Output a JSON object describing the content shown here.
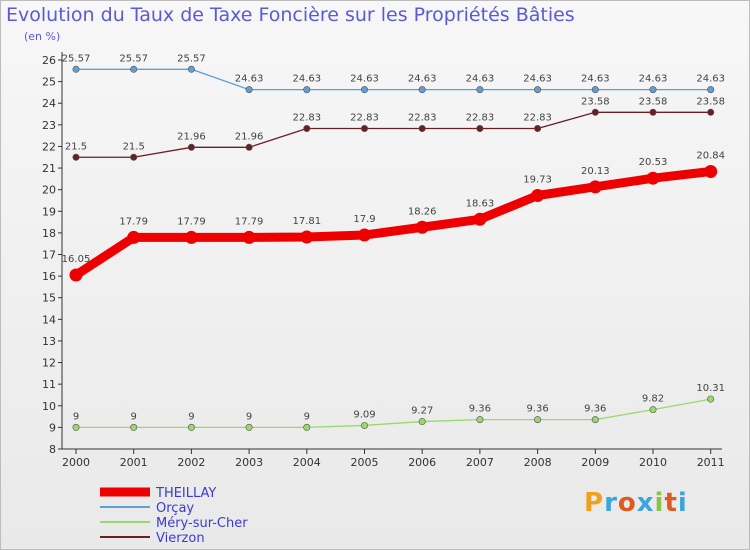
{
  "chart_data": {
    "type": "line",
    "title": "Evolution du Taux de Taxe Foncière sur les Propriétés Bâties",
    "subtitle": "(en %)",
    "xlabel": "",
    "ylabel": "",
    "x": [
      "2000",
      "2001",
      "2002",
      "2003",
      "2004",
      "2005",
      "2006",
      "2007",
      "2008",
      "2009",
      "2010",
      "2011"
    ],
    "ylim": [
      8,
      26
    ],
    "yticks": [
      "8",
      "9",
      "10",
      "11",
      "12",
      "13",
      "14",
      "15",
      "16",
      "17",
      "18",
      "19",
      "20",
      "21",
      "22",
      "23",
      "24",
      "25",
      "26"
    ],
    "grid": false,
    "legend_position": "bottom-left",
    "series": [
      {
        "name": "Vierzon",
        "color": "#6b1f24",
        "values": [
          21.5,
          21.5,
          21.96,
          21.96,
          22.83,
          22.83,
          22.83,
          22.83,
          22.83,
          23.58,
          23.58,
          23.58
        ],
        "labels": [
          "21.5",
          "21.5",
          "21.96",
          "21.96",
          "22.83",
          "22.83",
          "22.83",
          "22.83",
          "22.83",
          "23.58",
          "23.58",
          "23.58"
        ]
      },
      {
        "name": "Méry-sur-Cher",
        "color": "#9ad86b",
        "values": [
          9,
          9,
          9,
          9,
          9,
          9.09,
          9.27,
          9.36,
          9.36,
          9.36,
          9.82,
          10.31
        ],
        "labels": [
          "9",
          "9",
          "9",
          "9",
          "9",
          "9.09",
          "9.27",
          "9.36",
          "9.36",
          "9.36",
          "9.82",
          "10.31"
        ]
      },
      {
        "name": "Orçay",
        "color": "#5f9fd6",
        "values": [
          25.57,
          25.57,
          25.57,
          24.63,
          24.63,
          24.63,
          24.63,
          24.63,
          24.63,
          24.63,
          24.63,
          24.63
        ],
        "labels": [
          "25.57",
          "25.57",
          "25.57",
          "24.63",
          "24.63",
          "24.63",
          "24.63",
          "24.63",
          "24.63",
          "24.63",
          "24.63",
          "24.63"
        ]
      },
      {
        "name": "THEILLAY",
        "color": "#ee0000",
        "values": [
          16.05,
          17.79,
          17.79,
          17.79,
          17.81,
          17.9,
          18.26,
          18.63,
          19.73,
          20.13,
          20.53,
          20.84
        ],
        "labels": [
          "16.05",
          "17.79",
          "17.79",
          "17.79",
          "17.81",
          "17.9",
          "18.26",
          "18.63",
          "19.73",
          "20.13",
          "20.53",
          "20.84"
        ]
      }
    ],
    "legend": [
      "THEILLAY",
      "Orçay",
      "Méry-sur-Cher",
      "Vierzon"
    ]
  },
  "brand": {
    "logo_text": "Proxiti"
  }
}
